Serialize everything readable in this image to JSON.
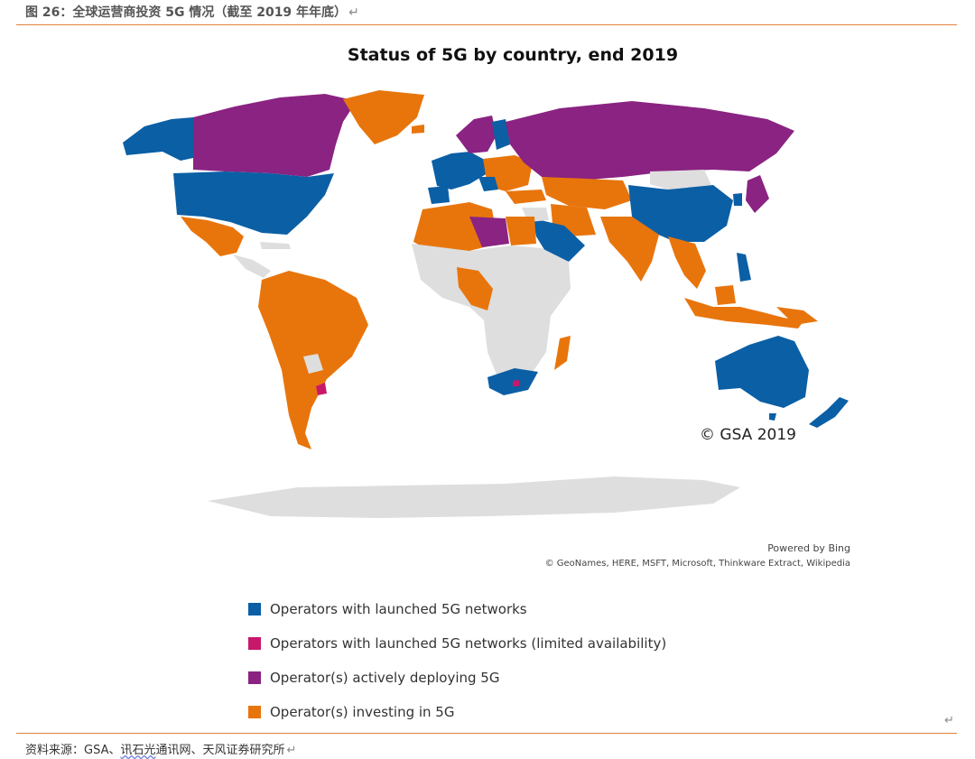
{
  "figure": {
    "caption": "图 26：全球运营商投资 5G 情况（截至 2019 年年底）",
    "paragraph_mark": "↵"
  },
  "map": {
    "title": "Status of 5G by country, end 2019",
    "copyright": "© GSA 2019",
    "powered_by": "Powered by Bing",
    "attribution": "© GeoNames, HERE, MSFT, Microsoft, Thinkware Extract, Wikipedia",
    "colors": {
      "launched": "#0b5fa5",
      "limited": "#c8186a",
      "deploying": "#8a2382",
      "investing": "#e8750c",
      "none": "#dedede"
    },
    "legend": [
      {
        "label": "Operators with launched 5G networks",
        "color": "#0b5fa5"
      },
      {
        "label": "Operators with launched 5G networks (limited availability)",
        "color": "#c8186a"
      },
      {
        "label": "Operator(s) actively deploying 5G",
        "color": "#8a2382"
      },
      {
        "label": "Operator(s) investing in 5G",
        "color": "#e8750c"
      }
    ]
  },
  "footer": {
    "source_prefix": "资料来源：GSA、",
    "source_underlined": "讯石光",
    "source_suffix": "通讯网、天风证券研究所",
    "paragraph_mark": "↵",
    "return_mark": "↵"
  }
}
